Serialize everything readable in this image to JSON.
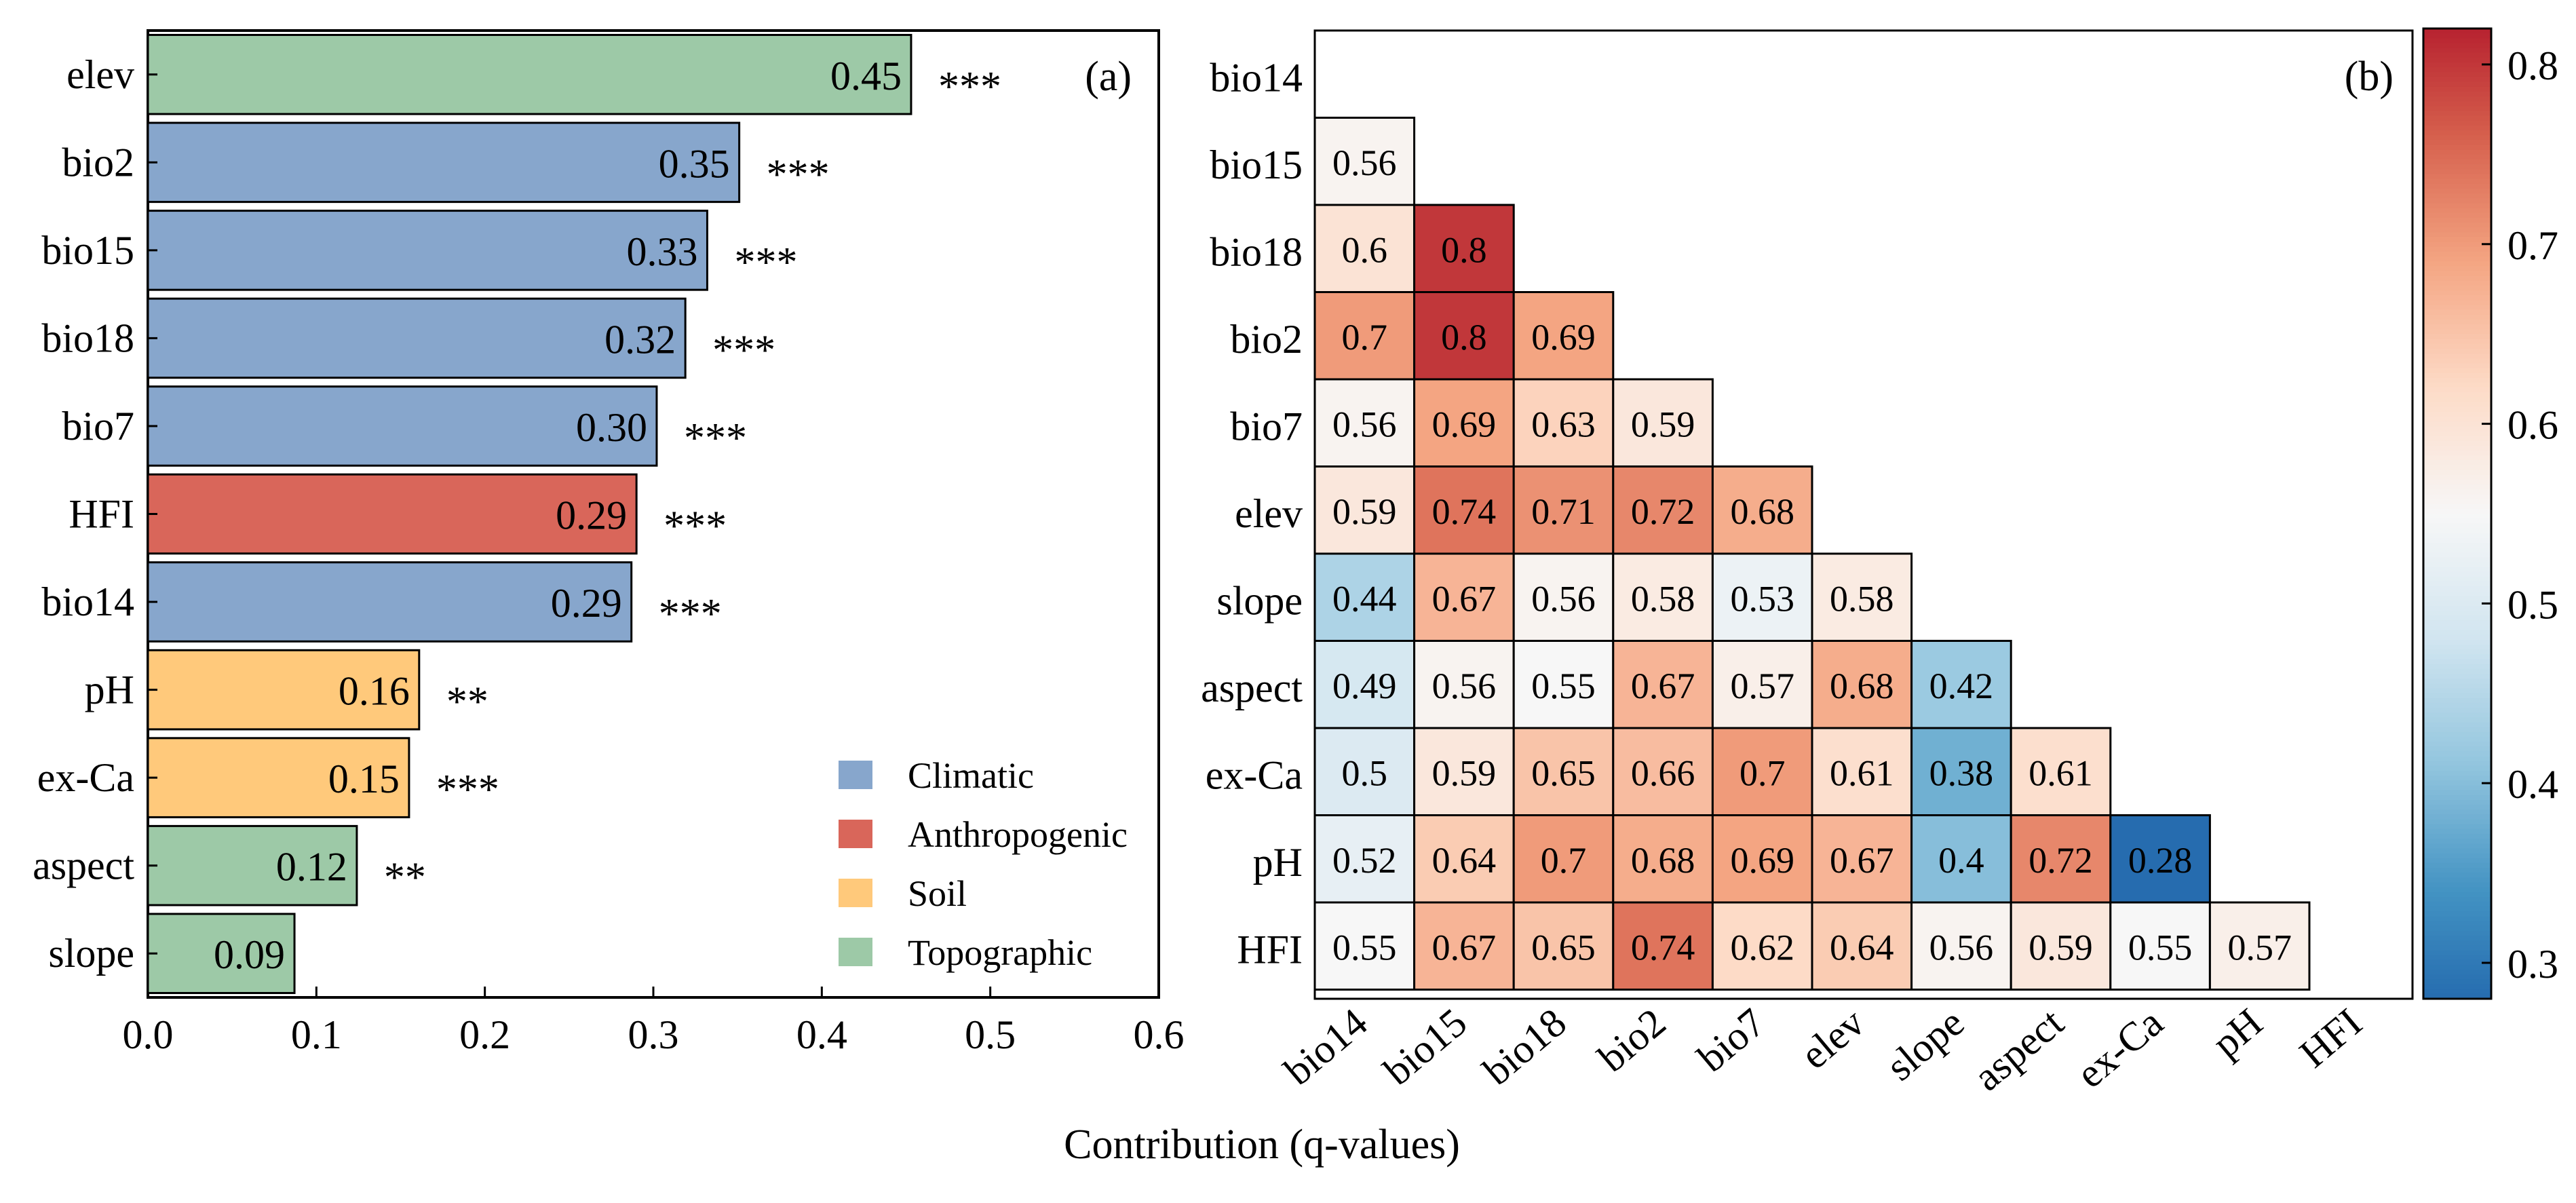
{
  "colors": {
    "Climatic": "#87A6CC",
    "Anthropogenic": "#D9665A",
    "Soil": "#FFC97B",
    "Topographic": "#9DC9A7"
  },
  "chart_data": [
    {
      "type": "bar",
      "orientation": "horizontal",
      "panel_label": "(a)",
      "xlabel": "Contribution (q-values)",
      "xlim": [
        0.0,
        0.6
      ],
      "xticks": [
        "0.0",
        "0.1",
        "0.2",
        "0.3",
        "0.4",
        "0.5",
        "0.6"
      ],
      "categories": [
        "elev",
        "bio2",
        "bio15",
        "bio18",
        "bio7",
        "HFI",
        "bio14",
        "pH",
        "ex-Ca",
        "aspect",
        "slope"
      ],
      "values": [
        0.453,
        0.351,
        0.332,
        0.319,
        0.302,
        0.29,
        0.287,
        0.161,
        0.155,
        0.124,
        0.087
      ],
      "value_labels": [
        "0.45",
        "0.35",
        "0.33",
        "0.32",
        "0.30",
        "0.29",
        "0.29",
        "0.16",
        "0.15",
        "0.12",
        "0.09"
      ],
      "significance": [
        "***",
        "***",
        "***",
        "***",
        "***",
        "***",
        "***",
        "**",
        "***",
        "**",
        ""
      ],
      "groups": [
        "Topographic",
        "Climatic",
        "Climatic",
        "Climatic",
        "Climatic",
        "Anthropogenic",
        "Climatic",
        "Soil",
        "Soil",
        "Topographic",
        "Topographic"
      ],
      "legend": [
        "Climatic",
        "Anthropogenic",
        "Soil",
        "Topographic"
      ],
      "legend_position": "bottom-right"
    },
    {
      "type": "heatmap",
      "panel_label": "(b)",
      "labels": [
        "bio14",
        "bio15",
        "bio18",
        "bio2",
        "bio7",
        "elev",
        "slope",
        "aspect",
        "ex-Ca",
        "pH",
        "HFI"
      ],
      "lower_triangle": [
        [],
        [
          0.56
        ],
        [
          0.6,
          0.8
        ],
        [
          0.7,
          0.8,
          0.69
        ],
        [
          0.56,
          0.69,
          0.63,
          0.59
        ],
        [
          0.59,
          0.74,
          0.71,
          0.72,
          0.68
        ],
        [
          0.44,
          0.67,
          0.56,
          0.58,
          0.53,
          0.58
        ],
        [
          0.49,
          0.56,
          0.55,
          0.67,
          0.57,
          0.68,
          0.42
        ],
        [
          0.5,
          0.59,
          0.65,
          0.66,
          0.7,
          0.61,
          0.38,
          0.61
        ],
        [
          0.52,
          0.64,
          0.7,
          0.68,
          0.69,
          0.67,
          0.4,
          0.72,
          0.28
        ],
        [
          0.55,
          0.67,
          0.65,
          0.74,
          0.62,
          0.64,
          0.56,
          0.59,
          0.55,
          0.57
        ]
      ],
      "colorbar_range": [
        0.28,
        0.82
      ],
      "colorbar_ticks": [
        "0.3",
        "0.4",
        "0.5",
        "0.6",
        "0.7",
        "0.8"
      ],
      "colormap": "RdBu_r"
    }
  ]
}
